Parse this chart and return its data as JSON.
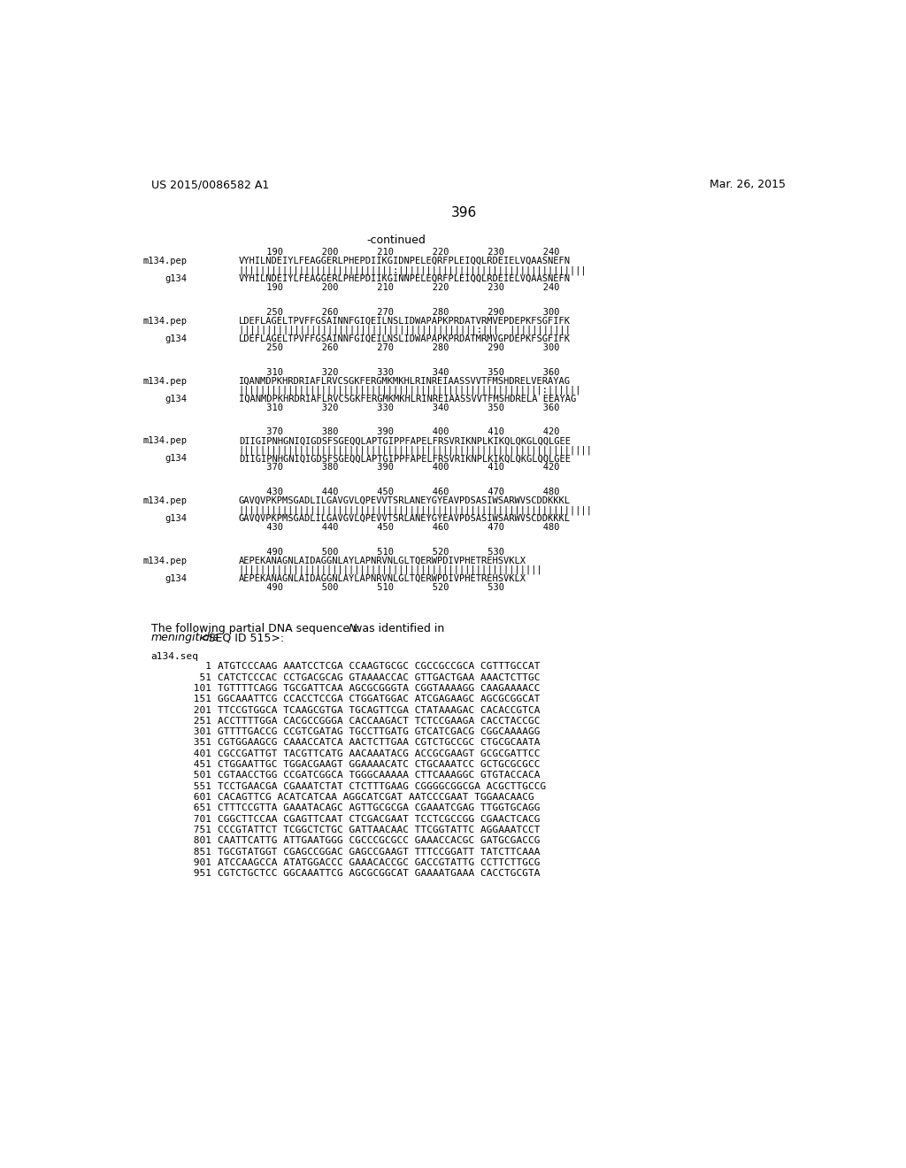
{
  "title_left": "US 2015/0086582 A1",
  "title_right": "Mar. 26, 2015",
  "page_num": "396",
  "continued": "-continued",
  "bg_color": "#ffffff",
  "alignment_blocks": [
    {
      "nums_top": "     190       200       210       220       230       240",
      "seq1_label": "m134.pep",
      "seq1": "VYHILNDEIYLFEAGGERLPHEPDIIKGIDNPELEQRFPLEIQQLRDEIELVQAASNEFN",
      "match": "||||||||||||||||||||||||||||:||||||||||||||||||||||||||||||||||",
      "seq2_label": "g134",
      "seq2": "VYHILNDEIYLFEAGGERLPHEPDIIKGINNPELEQRFPLEIQQLRDEIELVQAASNEFN",
      "nums_bot": "     190       200       210       220       230       240"
    },
    {
      "nums_top": "     250       260       270       280       290       300",
      "seq1_label": "m134.pep",
      "seq1": "LDEFLAGELTPVFFGSAINNFGIQEILNSLIDWAPAPKPRDATVRMVEPDEPKFSGFIFK",
      "match": "|||||||||||||||||||||||||||||||||||||||||||:|||  |||||||||||",
      "seq2_label": "g134",
      "seq2": "LDEFLAGELTPVFFGSAINNFGIQEILNSLIDWAPAPKPRDATMRMVGPDEPKFSGFIFK",
      "nums_bot": "     250       260       270       280       290       300"
    },
    {
      "nums_top": "     310       320       330       340       350       360",
      "seq1_label": "m134.pep",
      "seq1": "IQANMDPKHRDRIAFLRVCSGKFERGMKMKHLRINREIAASSVVTFMSHDRELVERAYAG",
      "match": "|||||||||||||||||||||||||||||||||||||||||||||||||||||||:||||||",
      "seq2_label": "g134",
      "seq2": "IQANMDPKHRDRIAFLRVCSGKFERGMKMKHLRINREIAASSVVTFMSHDRELA EEAYAG",
      "nums_bot": "     310       320       330       340       350       360"
    },
    {
      "nums_top": "     370       380       390       400       410       420",
      "seq1_label": "m134.pep",
      "seq1": "DIIGIPNHGNIQIGDSFSGEQQLAPTGIPPFAPELFRSVRIKNPLKIKQLQKGLQQLGEE",
      "match": "||||||||||||||||||||||||||||||||||||||||||||||||||||||||||||||||",
      "seq2_label": "g134",
      "seq2": "DIIGIPNHGNIQIGDSFSGEQQLAPTGIPPFAPELFRSVRIKNPLKIKQLQKGLQQLGEE",
      "nums_bot": "     370       380       390       400       410       420"
    },
    {
      "nums_top": "     430       440       450       460       470       480",
      "seq1_label": "m134.pep",
      "seq1": "GAVQVPKPMSGADLILGAVGVLQPEVVTSRLANEYGYEAVPDSASIWSARWVSCDDKKKL",
      "match": "||||||||||||||||||||||||||||||||||||||||||||||||||||||||||||||||",
      "seq2_label": "g134",
      "seq2": "GAVQVPKPMSGADLILGAVGVLQPEVVTSRLANEYGYEAVPDSASIWSARWVSCDDKKKL",
      "nums_bot": "     430       440       450       460       470       480"
    },
    {
      "nums_top": "     490       500       510       520       530",
      "seq1_label": "m134.pep",
      "seq1": "AEPEKANAGNLAIDAGGNLAYLAPNRVNLGLTQERWPDIVPHETREHSVKLX",
      "match": "|||||||||||||||||||||||||||||||||||||||||||||||||||||||",
      "seq2_label": "g134",
      "seq2": "AEPEKANAGNLAIDAGGNLAYLAPNRVNLGLTQERWPDIVPHETREHSVKLX",
      "nums_bot": "     490       500       510       520       530"
    }
  ],
  "intro_text_part1": "The following partial DNA sequence was identified in ",
  "intro_text_italic1": "N.",
  "intro_text_line2_italic": "meningitidis",
  "intro_text_line2_rest": " <SEQ ID 515>:",
  "dna_label": "a134.seq",
  "dna_sequences": [
    {
      "num": "1",
      "seq": "ATGTCCCAAG AAATCCTCGA CCAAGTGCGC CGCCGCCGCA CGTTTGCCAT"
    },
    {
      "num": "51",
      "seq": "CATCTCCCAC CCTGACGCAG GTAAAACCAC GTTGACTGAA AAACTCTTGC"
    },
    {
      "num": "101",
      "seq": "TGTTTTCAGG TGCGATTCAA AGCGCGGGTA CGGTAAAAGG CAAGAAAACC"
    },
    {
      "num": "151",
      "seq": "GGCAAATTCG CCACCTCCGA CTGGATGGAC ATCGAGAAGC AGCGCGGCAT"
    },
    {
      "num": "201",
      "seq": "TTCCGTGGCA TCAAGCGTGA TGCAGTTCGA CTATAAAGAC CACACCGTCA"
    },
    {
      "num": "251",
      "seq": "ACCTTTTGGA CACGCCGGGA CACCAAGACT TCTCCGAAGA CACCTACCGC"
    },
    {
      "num": "301",
      "seq": "GTTTTGACCG CCGTCGATAG TGCCTTGATG GTCATCGACG CGGCAAAAGG"
    },
    {
      "num": "351",
      "seq": "CGTGGAAGCG CAAACCATCA AACTCTTGAA CGTCTGCCGC CTGCGCAATA"
    },
    {
      "num": "401",
      "seq": "CGCCGATTGT TACGTTCATG AACAAATACG ACCGCGAAGT GCGCGATTCC"
    },
    {
      "num": "451",
      "seq": "CTGGAATTGC TGGACGAAGT GGAAAACATC CTGCAAATCC GCTGCGCGCC"
    },
    {
      "num": "501",
      "seq": "CGTAACCTGG CCGATCGGCA TGGGCAAAAA CTTCAAAGGC GTGTACCACA"
    },
    {
      "num": "551",
      "seq": "TCCTGAACGA CGAAATCTAT CTCTTTGAAG CGGGGCGGCGA ACGCTTGCCG"
    },
    {
      "num": "601",
      "seq": "CACAGTTCG ACATCATCAA AGGCATCGAT AATCCCGAAT TGGAACAACG"
    },
    {
      "num": "651",
      "seq": "CTTTCCGTTA GAAATACAGC AGTTGCGCGA CGAAATCGAG TTGGTGCAGG"
    },
    {
      "num": "701",
      "seq": "CGGCTTCCAA CGAGTTCAAT CTCGACGAAT TCCTCGCCGG CGAACTCACG"
    },
    {
      "num": "751",
      "seq": "CCCGTATTCT TCGGCTCTGC GATTAACAAC TTCGGTATTC AGGAAATCCT"
    },
    {
      "num": "801",
      "seq": "CAATTCATTG ATTGAATGGG CGCCCGCGCC GAAACCACGC GATGCGACCG"
    },
    {
      "num": "851",
      "seq": "TGCGTATGGT CGAGCCGGAC GAGCCGAAGT TTTCCGGATT TATCTTCAAA"
    },
    {
      "num": "901",
      "seq": "ATCCAAGCCA ATATGGACCC GAAACACCGC GACCGTATTG CCTTCTTGCG"
    },
    {
      "num": "951",
      "seq": "CGTCTGCTCC GGCAAATTCG AGCGCGGCAT GAAAATGAAA CACCTGCGTA"
    }
  ]
}
